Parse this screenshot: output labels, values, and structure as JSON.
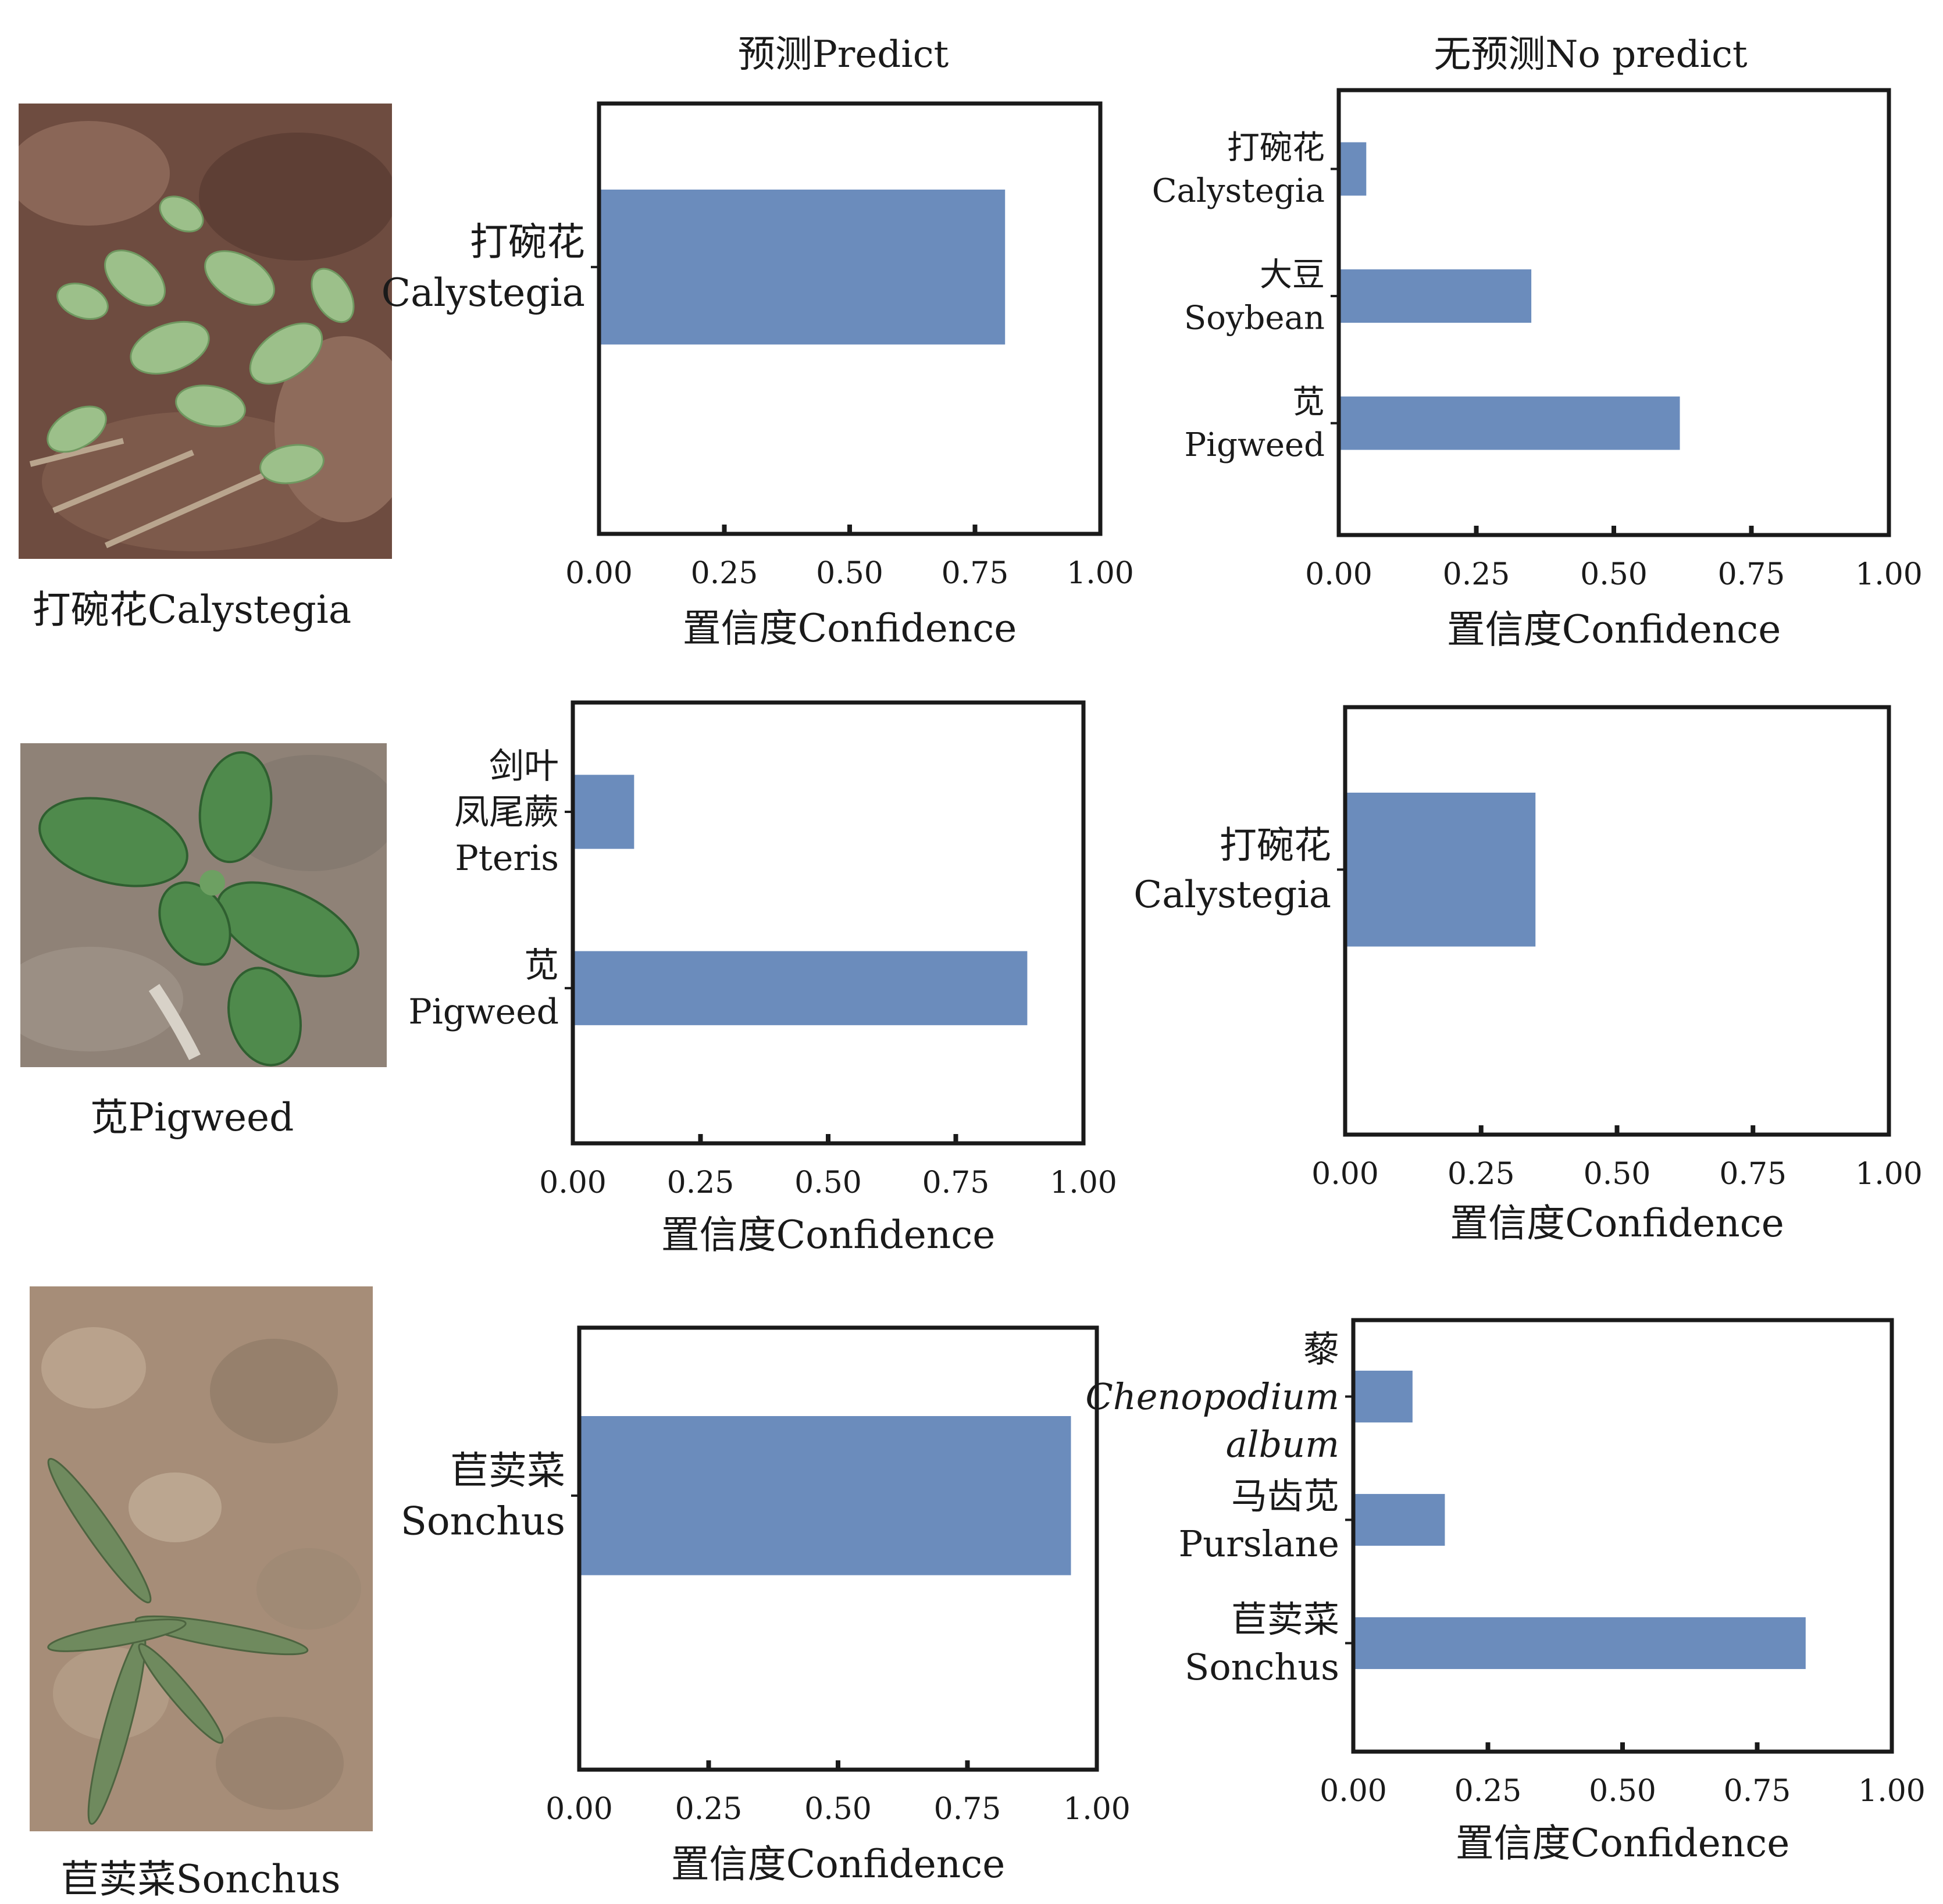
{
  "headers": {
    "predict": "预测Predict",
    "no_predict": "无预测No predict"
  },
  "colors": {
    "bar": "#6b8cbc",
    "axis": "#1a1a1a",
    "background": "#ffffff"
  },
  "rows": [
    {
      "caption": "打碗花Calystegia",
      "photo": "calystegia-seedling-photo"
    },
    {
      "caption": "苋Pigweed",
      "photo": "pigweed-seedling-photo"
    },
    {
      "caption": "苣荬菜Sonchus",
      "photo": "sonchus-seedling-photo"
    }
  ],
  "chart_data": [
    {
      "type": "bar",
      "orientation": "horizontal",
      "panel": "row1-predict",
      "categories": [
        [
          "打碗花",
          "Calystegia"
        ]
      ],
      "values": [
        0.81
      ],
      "xlabel": "置信度Confidence",
      "xlim": [
        0,
        1
      ],
      "xticks": [
        "0.00",
        "0.25",
        "0.50",
        "0.75",
        "1.00"
      ]
    },
    {
      "type": "bar",
      "orientation": "horizontal",
      "panel": "row1-no-predict",
      "categories": [
        [
          "打碗花",
          "Calystegia"
        ],
        [
          "大豆",
          "Soybean"
        ],
        [
          "苋",
          "Pigweed"
        ]
      ],
      "values": [
        0.05,
        0.35,
        0.62
      ],
      "xlabel": "置信度Confidence",
      "xlim": [
        0,
        1
      ],
      "xticks": [
        "0.00",
        "0.25",
        "0.50",
        "0.75",
        "1.00"
      ]
    },
    {
      "type": "bar",
      "orientation": "horizontal",
      "panel": "row2-predict",
      "categories": [
        [
          "剑叶",
          "凤尾蕨",
          "Pteris"
        ],
        [
          "苋",
          "Pigweed"
        ]
      ],
      "values": [
        0.12,
        0.89
      ],
      "xlabel": "置信度Confidence",
      "xlim": [
        0,
        1
      ],
      "xticks": [
        "0.00",
        "0.25",
        "0.50",
        "0.75",
        "1.00"
      ]
    },
    {
      "type": "bar",
      "orientation": "horizontal",
      "panel": "row2-no-predict",
      "categories": [
        [
          "打碗花",
          "Calystegia"
        ]
      ],
      "values": [
        0.35
      ],
      "xlabel": "置信度Confidence",
      "xlim": [
        0,
        1
      ],
      "xticks": [
        "0.00",
        "0.25",
        "0.50",
        "0.75",
        "1.00"
      ]
    },
    {
      "type": "bar",
      "orientation": "horizontal",
      "panel": "row3-predict",
      "categories": [
        [
          "苣荬菜",
          "Sonchus"
        ]
      ],
      "values": [
        0.95
      ],
      "xlabel": "置信度Confidence",
      "xlim": [
        0,
        1
      ],
      "xticks": [
        "0.00",
        "0.25",
        "0.50",
        "0.75",
        "1.00"
      ]
    },
    {
      "type": "bar",
      "orientation": "horizontal",
      "panel": "row3-no-predict",
      "categories": [
        [
          "藜",
          "Chenopodium",
          "album"
        ],
        [
          "马齿苋",
          "Purslane"
        ],
        [
          "苣荬菜",
          "Sonchus"
        ]
      ],
      "values": [
        0.11,
        0.17,
        0.84
      ],
      "xlabel": "置信度Confidence",
      "xlim": [
        0,
        1
      ],
      "xticks": [
        "0.00",
        "0.25",
        "0.50",
        "0.75",
        "1.00"
      ]
    }
  ]
}
